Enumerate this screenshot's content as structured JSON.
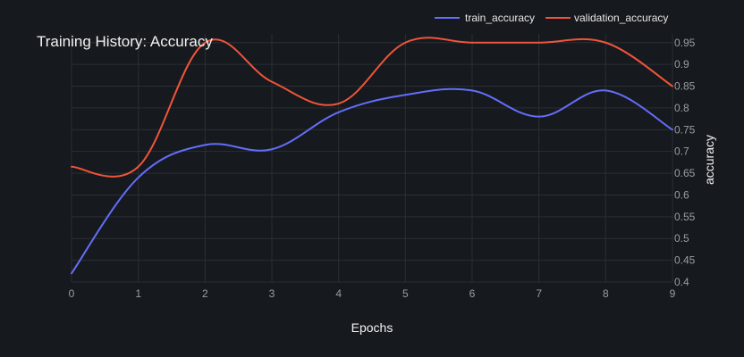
{
  "chart_data": {
    "type": "line",
    "title": "Training History: Accuracy",
    "xlabel": "Epochs",
    "ylabel": "accuracy",
    "x": [
      0,
      1,
      2,
      3,
      4,
      5,
      6,
      7,
      8,
      9
    ],
    "xlim": [
      0,
      9
    ],
    "ylim": [
      0.4,
      0.97
    ],
    "x_ticks": [
      0,
      1,
      2,
      3,
      4,
      5,
      6,
      7,
      8,
      9
    ],
    "y_ticks": [
      0.4,
      0.45,
      0.5,
      0.55,
      0.6,
      0.65,
      0.7,
      0.75,
      0.8,
      0.85,
      0.9,
      0.95
    ],
    "y_axis_side": "right",
    "grid": true,
    "legend_position": "top-right",
    "series": [
      {
        "name": "train_accuracy",
        "color": "#636efa",
        "values": [
          0.42,
          0.64,
          0.715,
          0.705,
          0.79,
          0.83,
          0.84,
          0.78,
          0.84,
          0.75
        ]
      },
      {
        "name": "validation_accuracy",
        "color": "#ef553b",
        "values": [
          0.665,
          0.665,
          0.95,
          0.86,
          0.81,
          0.95,
          0.95,
          0.95,
          0.95,
          0.85
        ]
      }
    ]
  }
}
